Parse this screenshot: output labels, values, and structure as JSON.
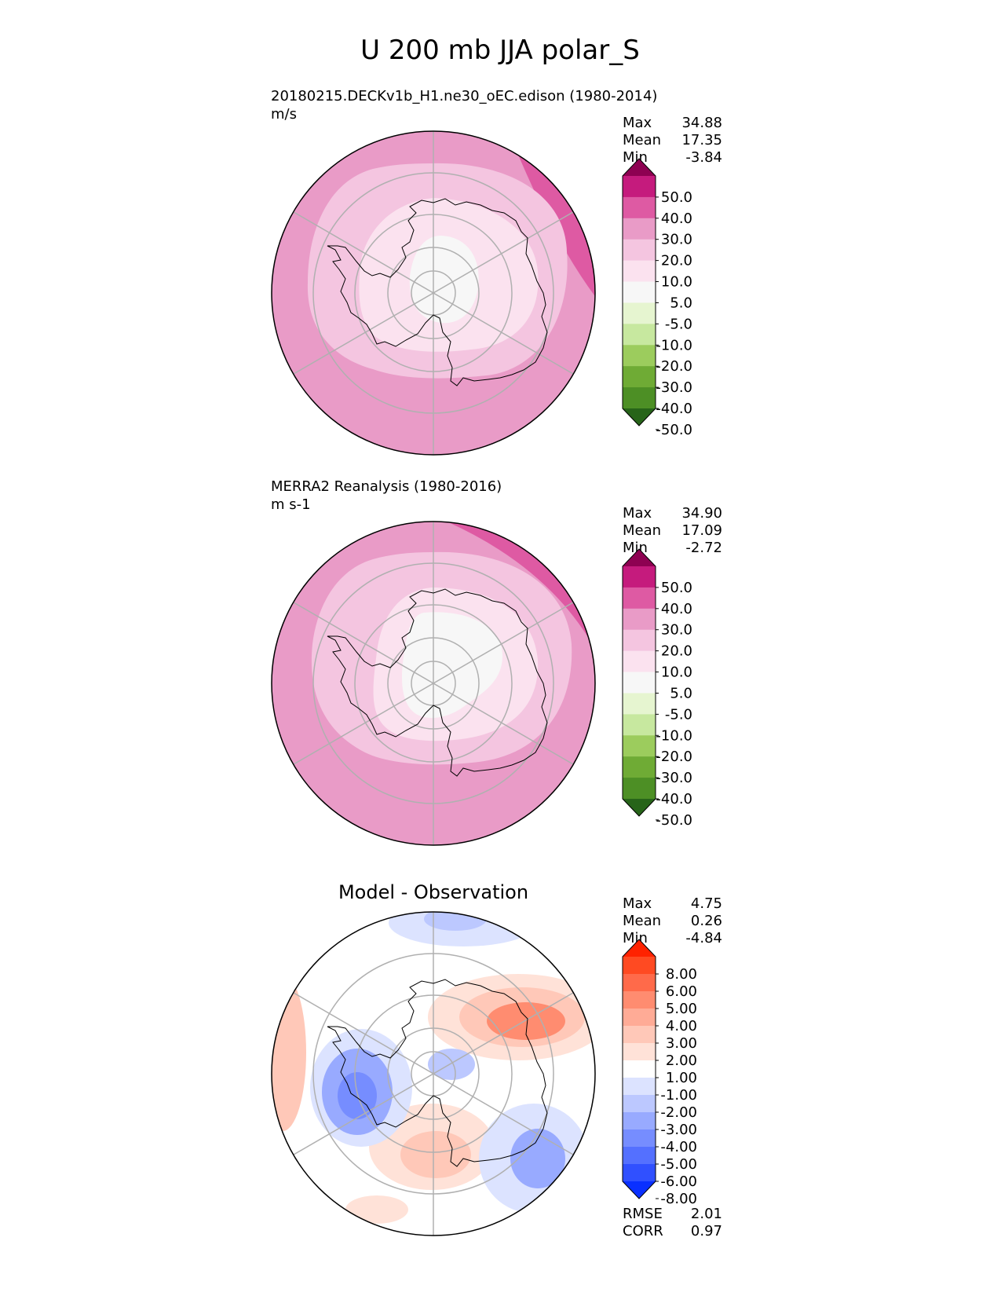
{
  "title": "U 200 mb JJA polar_S",
  "panels": [
    {
      "id": "test",
      "label": "20180215.DECKv1b_H1.ne30_oEC.edison (1980-2014)",
      "units": "m/s",
      "stats": [
        {
          "name": "Max",
          "value": "34.88"
        },
        {
          "name": "Mean",
          "value": "17.35"
        },
        {
          "name": "Min",
          "value": "-3.84"
        }
      ],
      "colorbar": {
        "ticks": [
          "50.0",
          "40.0",
          "30.0",
          "20.0",
          "10.0",
          "5.0",
          "-5.0",
          "-10.0",
          "-20.0",
          "-30.0",
          "-40.0",
          "-50.0"
        ],
        "colors": [
          "#8e0152",
          "#c51b7d",
          "#de5aa3",
          "#e99bc7",
          "#f4c5e0",
          "#fbe2ef",
          "#f7f7f7",
          "#e6f5d0",
          "#c7e89f",
          "#9ccc5d",
          "#6fab35",
          "#4d8f25",
          "#276419"
        ]
      }
    },
    {
      "id": "reference",
      "label": "MERRA2 Reanalysis (1980-2016)",
      "units": "m s-1",
      "stats": [
        {
          "name": "Max",
          "value": "34.90"
        },
        {
          "name": "Mean",
          "value": "17.09"
        },
        {
          "name": "Min",
          "value": "-2.72"
        }
      ],
      "colorbar": {
        "ticks": [
          "50.0",
          "40.0",
          "30.0",
          "20.0",
          "10.0",
          "5.0",
          "-5.0",
          "-10.0",
          "-20.0",
          "-30.0",
          "-40.0",
          "-50.0"
        ],
        "colors": [
          "#8e0152",
          "#c51b7d",
          "#de5aa3",
          "#e99bc7",
          "#f4c5e0",
          "#fbe2ef",
          "#f7f7f7",
          "#e6f5d0",
          "#c7e89f",
          "#9ccc5d",
          "#6fab35",
          "#4d8f25",
          "#276419"
        ]
      }
    },
    {
      "id": "diff",
      "label": "Model - Observation",
      "stats": [
        {
          "name": "Max",
          "value": "4.75"
        },
        {
          "name": "Mean",
          "value": "0.26"
        },
        {
          "name": "Min",
          "value": "-4.84"
        }
      ],
      "metrics": [
        {
          "name": "RMSE",
          "value": "2.01"
        },
        {
          "name": "CORR",
          "value": "0.97"
        }
      ],
      "colorbar": {
        "ticks": [
          "8.00",
          "6.00",
          "5.00",
          "4.00",
          "3.00",
          "2.00",
          "1.00",
          "-1.00",
          "-2.00",
          "-3.00",
          "-4.00",
          "-5.00",
          "-6.00",
          "-8.00"
        ],
        "colors": [
          "#ff2200",
          "#ff4a22",
          "#ff6a4a",
          "#ff8c70",
          "#ffab96",
          "#ffc8b8",
          "#ffe2d8",
          "#ffffff",
          "#dce3ff",
          "#bcc8ff",
          "#98aaff",
          "#768dff",
          "#5470ff",
          "#3050ff",
          "#0a30ff"
        ]
      }
    }
  ]
}
